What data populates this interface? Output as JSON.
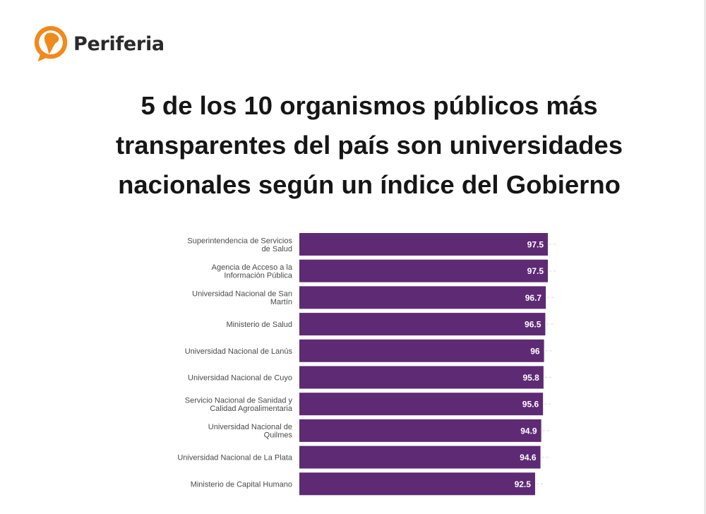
{
  "brand": {
    "name": "Periferia",
    "logo_icon": "speech-bubble-south-america-icon",
    "accent_color": "#ef8a1c"
  },
  "headline": "5 de los 10 organismos públicos más transparentes del país son universidades nacionales según un índice del Gobierno",
  "chart_data": {
    "type": "bar",
    "orientation": "horizontal",
    "title": "",
    "xlabel": "",
    "ylabel": "",
    "bar_color": "#5e2a74",
    "xlim": [
      0,
      100
    ],
    "grid": false,
    "categories": [
      [
        "Superintendencia de Servicios",
        "de Salud"
      ],
      [
        "Agencia de Acceso a la",
        "Información Pública"
      ],
      [
        "Universidad Nacional de San",
        "Martín"
      ],
      [
        "Ministerio de Salud"
      ],
      [
        "Universidad Nacional de Lanús"
      ],
      [
        "Universidad Nacional de Cuyo"
      ],
      [
        "Servicio Nacional de Sanidad y",
        "Calidad Agroalimentaria"
      ],
      [
        "Universidad Nacional de",
        "Quilmes"
      ],
      [
        "Universidad Nacional de La Plata"
      ],
      [
        "Ministerio de Capital Humano"
      ]
    ],
    "values": [
      97.5,
      97.5,
      96.7,
      96.5,
      96,
      95.8,
      95.6,
      94.9,
      94.6,
      92.5
    ],
    "value_labels": [
      "97.5",
      "97.5",
      "96.7",
      "96.5",
      "96",
      "95.8",
      "95.6",
      "94.9",
      "94.6",
      "92.5"
    ]
  }
}
